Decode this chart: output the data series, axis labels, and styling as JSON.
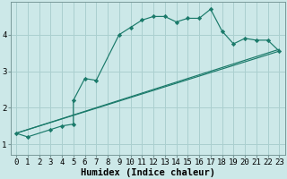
{
  "xlabel": "Humidex (Indice chaleur)",
  "background_color": "#cce8e8",
  "grid_color": "#aacfcf",
  "line_color": "#1a7a6a",
  "xlim": [
    -0.5,
    23.5
  ],
  "ylim": [
    0.7,
    4.9
  ],
  "xticks": [
    0,
    1,
    2,
    3,
    4,
    5,
    6,
    7,
    8,
    9,
    10,
    11,
    12,
    13,
    14,
    15,
    16,
    17,
    18,
    19,
    20,
    21,
    22,
    23
  ],
  "yticks": [
    1,
    2,
    3,
    4
  ],
  "series": [
    {
      "x": [
        0,
        1,
        3,
        4,
        5,
        5,
        6,
        7,
        9,
        10,
        11,
        12,
        13,
        14,
        15,
        16,
        17,
        18,
        19,
        20,
        21,
        22,
        23
      ],
      "y": [
        1.3,
        1.2,
        1.4,
        1.5,
        1.55,
        2.2,
        2.8,
        2.75,
        4.0,
        4.2,
        4.4,
        4.5,
        4.5,
        4.35,
        4.45,
        4.45,
        4.7,
        4.1,
        3.75,
        3.9,
        3.85,
        3.85,
        3.55
      ],
      "marker": true,
      "linestyle": "-"
    },
    {
      "x": [
        0,
        23
      ],
      "y": [
        1.3,
        3.6
      ],
      "marker": false,
      "linestyle": "-"
    },
    {
      "x": [
        0,
        23
      ],
      "y": [
        1.3,
        3.55
      ],
      "marker": false,
      "linestyle": "-"
    }
  ],
  "font_family": "monospace",
  "label_fontsize": 7.5,
  "tick_fontsize": 6.5
}
